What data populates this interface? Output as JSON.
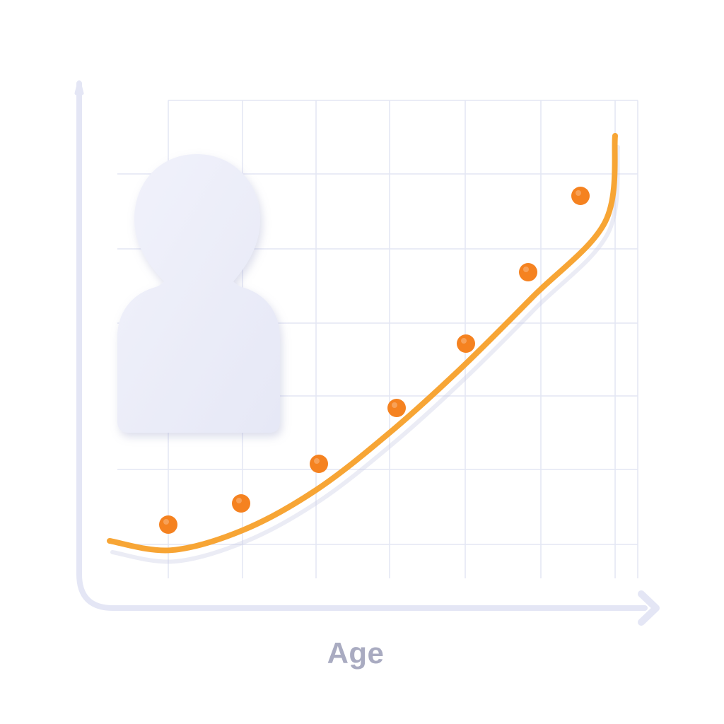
{
  "chart_data": {
    "type": "line",
    "xlabel": "Age",
    "ylabel": "",
    "x": [
      1,
      2,
      3,
      4,
      5,
      6,
      7
    ],
    "xlim": [
      0.2,
      7.45
    ],
    "ylim": [
      0,
      6.3
    ],
    "grid": true,
    "series": [
      {
        "values": [
          0.3,
          0.57,
          1.1,
          1.85,
          2.72,
          3.68,
          4.68
        ],
        "line_start": 0.1,
        "line_end": 5.55
      }
    ]
  },
  "person_icon": "person-silhouette-icon",
  "colors": {
    "line": "#F7A535",
    "marker": "#F58220",
    "grid": "#E3E6F4",
    "axis": "#E4E6F5",
    "icon": "#ECEEF9",
    "label": "#A9ABC1"
  }
}
